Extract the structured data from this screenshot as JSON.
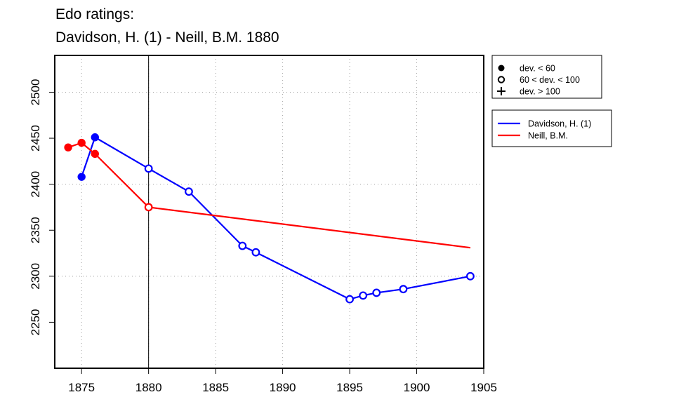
{
  "chart_data": {
    "type": "line",
    "title_lines": [
      "Edo ratings:",
      "Davidson, H. (1) - Neill, B.M. 1880"
    ],
    "xlabel": "",
    "ylabel": "",
    "xlim": [
      1873,
      1905
    ],
    "ylim": [
      2200,
      2540
    ],
    "x_ticks": [
      1875,
      1880,
      1885,
      1890,
      1895,
      1900,
      1905
    ],
    "y_ticks": [
      2250,
      2300,
      2350,
      2400,
      2450,
      2500
    ],
    "grid": true,
    "grid_x": [
      1875,
      1880,
      1885,
      1890,
      1895,
      1900
    ],
    "grid_y": [
      2300,
      2400,
      2500
    ],
    "vline_x": 1880,
    "marker_legend": {
      "placement": "top-right-outside",
      "items": [
        {
          "symbol": "filled-circle",
          "label": "dev. < 60"
        },
        {
          "symbol": "open-circle",
          "label": "60 < dev. < 100"
        },
        {
          "symbol": "plus",
          "label": "dev. > 100"
        }
      ]
    },
    "series_legend": {
      "placement": "right-outside",
      "items": [
        {
          "label": "Davidson, H. (1)",
          "color": "#0000ff"
        },
        {
          "label": "Neill, B.M.",
          "color": "#ff0000"
        }
      ]
    },
    "series": [
      {
        "name": "Davidson, H. (1)",
        "color": "#0000ff",
        "points": [
          {
            "x": 1875,
            "y": 2408,
            "marker": "filled"
          },
          {
            "x": 1876,
            "y": 2451,
            "marker": "filled"
          },
          {
            "x": 1880,
            "y": 2417,
            "marker": "open"
          },
          {
            "x": 1883,
            "y": 2392,
            "marker": "open"
          },
          {
            "x": 1887,
            "y": 2333,
            "marker": "open"
          },
          {
            "x": 1888,
            "y": 2326,
            "marker": "open"
          },
          {
            "x": 1895,
            "y": 2275,
            "marker": "open"
          },
          {
            "x": 1896,
            "y": 2279,
            "marker": "open"
          },
          {
            "x": 1897,
            "y": 2282,
            "marker": "open"
          },
          {
            "x": 1899,
            "y": 2286,
            "marker": "open"
          },
          {
            "x": 1904,
            "y": 2300,
            "marker": "open"
          }
        ]
      },
      {
        "name": "Neill, B.M.",
        "color": "#ff0000",
        "points": [
          {
            "x": 1874,
            "y": 2440,
            "marker": "filled"
          },
          {
            "x": 1875,
            "y": 2445,
            "marker": "filled"
          },
          {
            "x": 1876,
            "y": 2433,
            "marker": "filled"
          },
          {
            "x": 1880,
            "y": 2375,
            "marker": "open"
          },
          {
            "x": 1904,
            "y": 2331,
            "marker": "none"
          }
        ]
      }
    ]
  }
}
